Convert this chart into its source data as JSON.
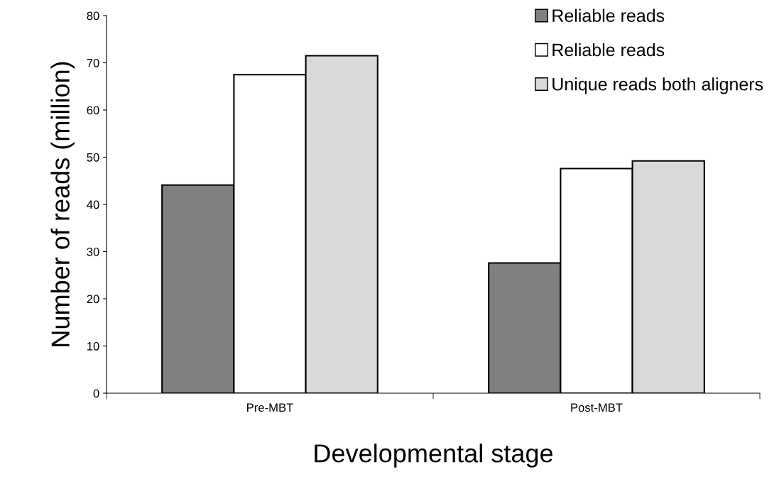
{
  "chart_data": {
    "type": "bar",
    "xlabel": "Developmental stage",
    "ylabel": "Number of reads (million)",
    "categories": [
      "Pre-MBT",
      "Post-MBT"
    ],
    "series": [
      {
        "name": "Reliable reads",
        "color": "#808080",
        "values": [
          44.1,
          27.6
        ]
      },
      {
        "name": "Reliable reads",
        "color": "#ffffff",
        "values": [
          67.5,
          47.6
        ]
      },
      {
        "name": "Unique reads both aligners",
        "color": "#d9d9d9",
        "values": [
          71.5,
          49.2
        ]
      }
    ],
    "ylim": [
      0,
      80
    ],
    "yticks": [
      0,
      10,
      20,
      30,
      40,
      50,
      60,
      70,
      80
    ],
    "grid": false,
    "legend": "top right"
  }
}
